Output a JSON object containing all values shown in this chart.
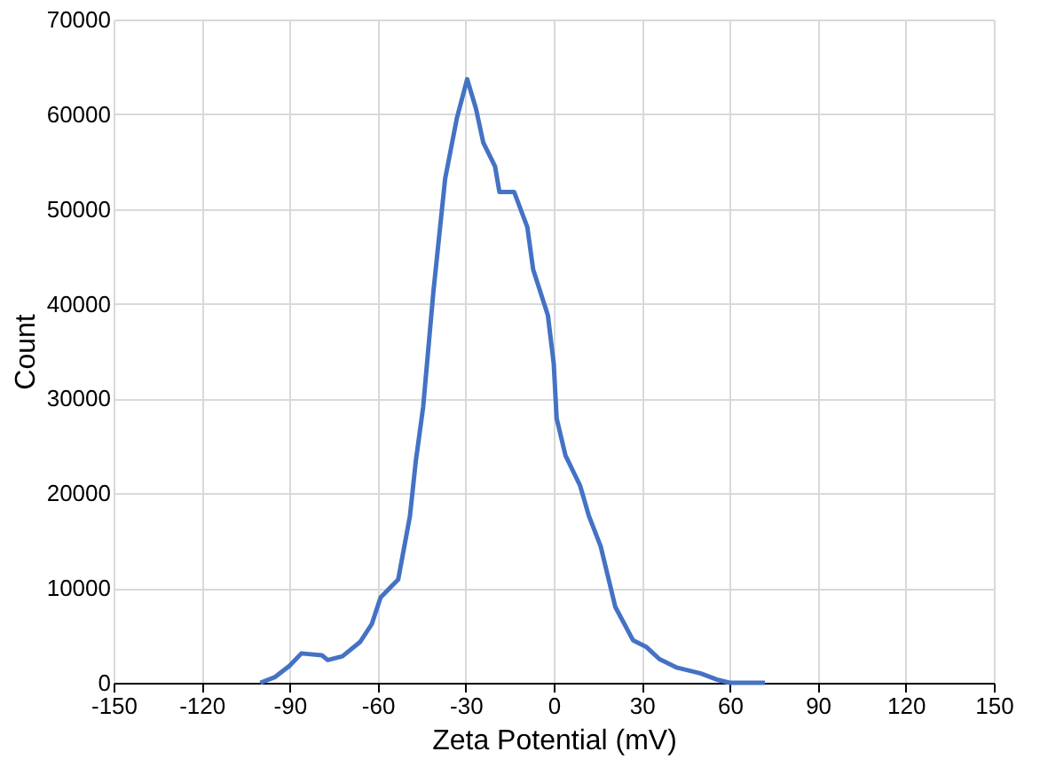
{
  "chart_data": {
    "type": "line",
    "xlabel": "Zeta Potential (mV)",
    "ylabel": "Count",
    "x": [
      -100,
      -95,
      -90,
      -86,
      -79,
      -77,
      -72,
      -66,
      -62,
      -59,
      -53,
      -49,
      -47,
      -44.5,
      -41,
      -37,
      -33,
      -29.5,
      -26.5,
      -24,
      -20,
      -18.5,
      -13.5,
      -9,
      -7,
      -2,
      0,
      1,
      4,
      9,
      12,
      16,
      21,
      27,
      31.5,
      36,
      42,
      50,
      56,
      60,
      72
    ],
    "series": [
      {
        "color": "#4472c4",
        "values": [
          0,
          600,
          1800,
          3100,
          2900,
          2400,
          2800,
          4300,
          6200,
          9000,
          10900,
          17600,
          23400,
          29100,
          41300,
          53200,
          59600,
          63700,
          60600,
          57000,
          54500,
          51800,
          51800,
          48100,
          43600,
          38800,
          33700,
          27900,
          24000,
          20800,
          17600,
          14400,
          8000,
          4500,
          3800,
          2500,
          1600,
          1000,
          300,
          0,
          0
        ]
      }
    ],
    "xlim": [
      -150,
      150
    ],
    "xticks": [
      -150,
      -120,
      -90,
      -60,
      -30,
      0,
      30,
      60,
      90,
      120,
      150
    ],
    "ylim": [
      0,
      70000
    ],
    "yticks": [
      0,
      10000,
      20000,
      30000,
      40000,
      50000,
      60000,
      70000
    ],
    "grid": true,
    "marker": "none",
    "line_style": "solid"
  }
}
